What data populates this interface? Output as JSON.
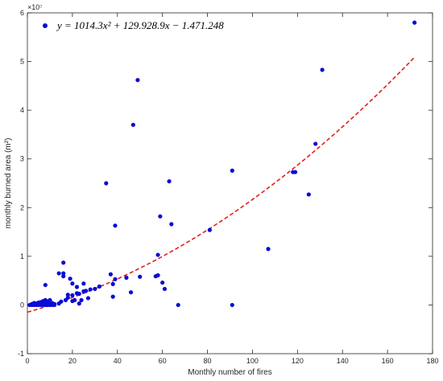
{
  "chart_data": {
    "type": "scatter",
    "xlabel": "Monthly number of fires",
    "ylabel": "monthly burned area (m²)",
    "y_exponent_label": "×10⁷",
    "y_scale": 10000000,
    "xlim": [
      0,
      180
    ],
    "ylim": [
      -10000000,
      60000000
    ],
    "xticks": [
      0,
      20,
      40,
      60,
      80,
      100,
      120,
      140,
      160,
      180
    ],
    "yticks": [
      -10000000,
      0,
      10000000,
      20000000,
      30000000,
      40000000,
      50000000,
      60000000
    ],
    "ytick_labels": [
      "-1",
      "0",
      "1",
      "2",
      "3",
      "4",
      "5",
      "6"
    ],
    "grid": false,
    "legend_position": "top-left",
    "legend_text": "y = 1014.3x² + 129.928.9x − 1.471.248",
    "colors": {
      "points": "#0b0bd6",
      "fit": "#e0201b",
      "axis": "#262626"
    },
    "series": [
      {
        "name": "y = 1014.3x² + 129.928.9x − 1.471.248",
        "points": [
          [
            1,
            0
          ],
          [
            2,
            0
          ],
          [
            2,
            200000
          ],
          [
            3,
            0
          ],
          [
            3,
            400000
          ],
          [
            3,
            100000
          ],
          [
            4,
            0
          ],
          [
            4,
            300000
          ],
          [
            5,
            0
          ],
          [
            5,
            500000
          ],
          [
            5,
            200000
          ],
          [
            6,
            0
          ],
          [
            6,
            600000
          ],
          [
            6,
            300000
          ],
          [
            7,
            0
          ],
          [
            7,
            800000
          ],
          [
            7,
            200000
          ],
          [
            8,
            0
          ],
          [
            8,
            4100000
          ],
          [
            8,
            1000000
          ],
          [
            8,
            500000
          ],
          [
            9,
            0
          ],
          [
            9,
            300000
          ],
          [
            9,
            700000
          ],
          [
            10,
            0
          ],
          [
            10,
            1000000
          ],
          [
            10,
            500000
          ],
          [
            11,
            0
          ],
          [
            11,
            400000
          ],
          [
            12,
            0
          ],
          [
            12,
            200000
          ],
          [
            14,
            6500000
          ],
          [
            14,
            300000
          ],
          [
            15,
            700000
          ],
          [
            16,
            8700000
          ],
          [
            16,
            6500000
          ],
          [
            16,
            5900000
          ],
          [
            17,
            1000000
          ],
          [
            18,
            2100000
          ],
          [
            18,
            1500000
          ],
          [
            19,
            5400000
          ],
          [
            20,
            4400000
          ],
          [
            20,
            2000000
          ],
          [
            20,
            800000
          ],
          [
            21,
            1000000
          ],
          [
            22,
            3700000
          ],
          [
            22,
            2400000
          ],
          [
            23,
            300000
          ],
          [
            23,
            2300000
          ],
          [
            24,
            1000000
          ],
          [
            25,
            4400000
          ],
          [
            25,
            2800000
          ],
          [
            26,
            2900000
          ],
          [
            27,
            1400000
          ],
          [
            28,
            3200000
          ],
          [
            30,
            3300000
          ],
          [
            32,
            3800000
          ],
          [
            35,
            25000000
          ],
          [
            37,
            6300000
          ],
          [
            38,
            4300000
          ],
          [
            38,
            1700000
          ],
          [
            39,
            16300000
          ],
          [
            39,
            5300000
          ],
          [
            44,
            5600000
          ],
          [
            46,
            2600000
          ],
          [
            47,
            37000000
          ],
          [
            49,
            46200000
          ],
          [
            50,
            5800000
          ],
          [
            57,
            5900000
          ],
          [
            58,
            10300000
          ],
          [
            58,
            6100000
          ],
          [
            59,
            18200000
          ],
          [
            60,
            4600000
          ],
          [
            61,
            3300000
          ],
          [
            63,
            25400000
          ],
          [
            64,
            16600000
          ],
          [
            67,
            0
          ],
          [
            81,
            15400000
          ],
          [
            91,
            27600000
          ],
          [
            91,
            0
          ],
          [
            107,
            11500000
          ],
          [
            118,
            27300000
          ],
          [
            119,
            27300000
          ],
          [
            125,
            22700000
          ],
          [
            128,
            33100000
          ],
          [
            131,
            48300000
          ],
          [
            172,
            58000000
          ]
        ]
      }
    ],
    "fit": {
      "a": 1014.3,
      "b": 129928.9,
      "c": -1471248,
      "x_range": [
        0,
        172
      ]
    }
  }
}
